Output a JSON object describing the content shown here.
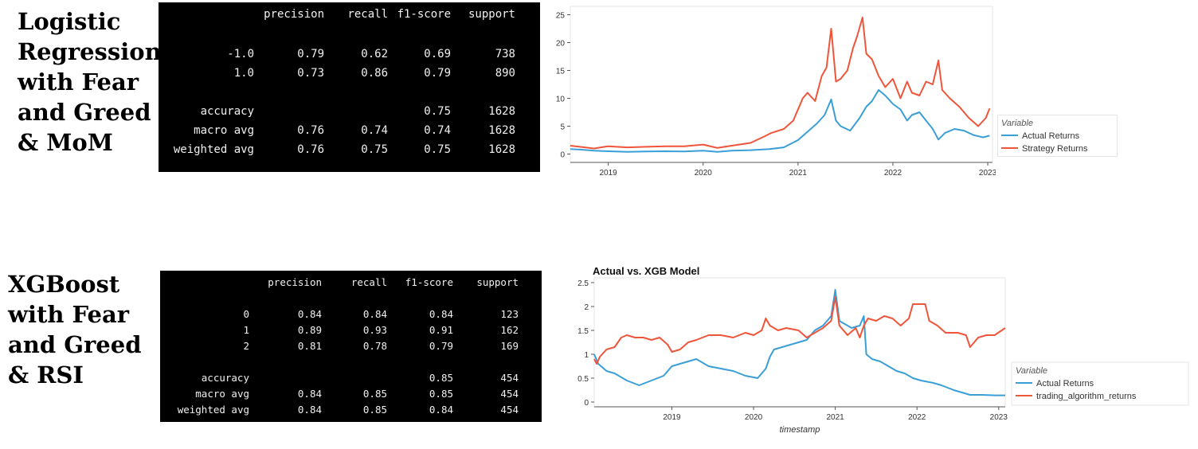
{
  "sections": [
    {
      "title": "Logistic\nRegression\nwith Fear\nand Greed\n& MoM",
      "report": {
        "headers": [
          "precision",
          "recall",
          "f1-score",
          "support"
        ],
        "rows": [
          {
            "label": "-1.0",
            "values": [
              "0.79",
              "0.62",
              "0.69",
              "738"
            ]
          },
          {
            "label": "1.0",
            "values": [
              "0.73",
              "0.86",
              "0.79",
              "890"
            ]
          },
          {
            "label": "accuracy",
            "values": [
              "",
              "",
              "0.75",
              "1628"
            ]
          },
          {
            "label": "macro avg",
            "values": [
              "0.76",
              "0.74",
              "0.74",
              "1628"
            ]
          },
          {
            "label": "weighted avg",
            "values": [
              "0.76",
              "0.75",
              "0.75",
              "1628"
            ]
          }
        ]
      }
    },
    {
      "title": "XGBoost\nwith Fear\nand Greed\n& RSI",
      "report": {
        "headers": [
          "precision",
          "recall",
          "f1-score",
          "support"
        ],
        "rows": [
          {
            "label": "0",
            "values": [
              "0.84",
              "0.84",
              "0.84",
              "123"
            ]
          },
          {
            "label": "1",
            "values": [
              "0.89",
              "0.93",
              "0.91",
              "162"
            ]
          },
          {
            "label": "2",
            "values": [
              "0.81",
              "0.78",
              "0.79",
              "169"
            ]
          },
          {
            "label": "accuracy",
            "values": [
              "",
              "",
              "0.85",
              "454"
            ]
          },
          {
            "label": "macro avg",
            "values": [
              "0.84",
              "0.85",
              "0.85",
              "454"
            ]
          },
          {
            "label": "weighted avg",
            "values": [
              "0.84",
              "0.85",
              "0.84",
              "454"
            ]
          }
        ]
      }
    }
  ],
  "chart_data": [
    {
      "type": "line",
      "title": "",
      "xlabel": "",
      "ylabel": "",
      "x_ticks": [
        "2019",
        "2020",
        "2021",
        "2022",
        "2023"
      ],
      "x_range": [
        2018.6,
        2023.05
      ],
      "y_ticks": [
        0,
        5,
        10,
        15,
        20,
        25
      ],
      "ylim": [
        -1.5,
        26.5
      ],
      "legend": {
        "title": "Variable",
        "position": "right"
      },
      "series": [
        {
          "name": "Actual Returns",
          "color": "#3a9fd6",
          "points": [
            [
              2018.6,
              0.9
            ],
            [
              2018.7,
              0.8
            ],
            [
              2018.85,
              0.6
            ],
            [
              2019.0,
              0.5
            ],
            [
              2019.2,
              0.4
            ],
            [
              2019.4,
              0.45
            ],
            [
              2019.6,
              0.5
            ],
            [
              2019.8,
              0.45
            ],
            [
              2020.0,
              0.6
            ],
            [
              2020.15,
              0.4
            ],
            [
              2020.3,
              0.6
            ],
            [
              2020.5,
              0.7
            ],
            [
              2020.7,
              0.9
            ],
            [
              2020.85,
              1.2
            ],
            [
              2021.0,
              2.5
            ],
            [
              2021.1,
              4.0
            ],
            [
              2021.2,
              5.5
            ],
            [
              2021.28,
              7.0
            ],
            [
              2021.35,
              9.8
            ],
            [
              2021.4,
              6.0
            ],
            [
              2021.45,
              5.0
            ],
            [
              2021.55,
              4.2
            ],
            [
              2021.65,
              6.5
            ],
            [
              2021.72,
              8.5
            ],
            [
              2021.78,
              9.5
            ],
            [
              2021.85,
              11.5
            ],
            [
              2021.92,
              10.5
            ],
            [
              2022.0,
              9.0
            ],
            [
              2022.08,
              8.0
            ],
            [
              2022.15,
              6.0
            ],
            [
              2022.2,
              7.0
            ],
            [
              2022.28,
              7.5
            ],
            [
              2022.35,
              6.0
            ],
            [
              2022.42,
              4.5
            ],
            [
              2022.48,
              2.6
            ],
            [
              2022.55,
              3.8
            ],
            [
              2022.65,
              4.5
            ],
            [
              2022.75,
              4.2
            ],
            [
              2022.85,
              3.4
            ],
            [
              2022.95,
              3.0
            ],
            [
              2023.02,
              3.3
            ]
          ]
        },
        {
          "name": "Strategy Returns",
          "color": "#ef553b",
          "points": [
            [
              2018.6,
              1.5
            ],
            [
              2018.7,
              1.3
            ],
            [
              2018.85,
              1.0
            ],
            [
              2019.0,
              1.4
            ],
            [
              2019.2,
              1.2
            ],
            [
              2019.4,
              1.3
            ],
            [
              2019.6,
              1.4
            ],
            [
              2019.8,
              1.4
            ],
            [
              2020.0,
              1.7
            ],
            [
              2020.15,
              1.1
            ],
            [
              2020.3,
              1.5
            ],
            [
              2020.5,
              2.0
            ],
            [
              2020.65,
              3.2
            ],
            [
              2020.72,
              3.8
            ],
            [
              2020.85,
              4.5
            ],
            [
              2020.95,
              6.0
            ],
            [
              2021.05,
              10.0
            ],
            [
              2021.1,
              11.0
            ],
            [
              2021.18,
              9.5
            ],
            [
              2021.25,
              14.0
            ],
            [
              2021.3,
              15.5
            ],
            [
              2021.35,
              22.5
            ],
            [
              2021.4,
              13.0
            ],
            [
              2021.45,
              13.5
            ],
            [
              2021.52,
              15.0
            ],
            [
              2021.58,
              19.0
            ],
            [
              2021.62,
              21.0
            ],
            [
              2021.68,
              24.5
            ],
            [
              2021.72,
              18.0
            ],
            [
              2021.78,
              17.0
            ],
            [
              2021.85,
              14.0
            ],
            [
              2021.92,
              12.0
            ],
            [
              2022.0,
              13.5
            ],
            [
              2022.08,
              10.0
            ],
            [
              2022.15,
              13.0
            ],
            [
              2022.2,
              11.0
            ],
            [
              2022.28,
              10.5
            ],
            [
              2022.35,
              13.0
            ],
            [
              2022.42,
              12.5
            ],
            [
              2022.48,
              16.8
            ],
            [
              2022.52,
              11.5
            ],
            [
              2022.6,
              10.0
            ],
            [
              2022.7,
              8.5
            ],
            [
              2022.8,
              6.5
            ],
            [
              2022.9,
              5.0
            ],
            [
              2022.98,
              6.5
            ],
            [
              2023.02,
              8.2
            ]
          ]
        }
      ]
    },
    {
      "type": "line",
      "title": "Actual vs. XGB Model",
      "xlabel": "timestamp",
      "ylabel": "",
      "x_ticks": [
        "2019",
        "2020",
        "2021",
        "2022",
        "2023"
      ],
      "x_range": [
        2018.05,
        2023.08
      ],
      "y_ticks": [
        "0",
        "0.5",
        "1",
        "1.5",
        "2",
        "2.5"
      ],
      "ylim": [
        -0.1,
        2.6
      ],
      "legend": {
        "title": "Variable",
        "position": "right"
      },
      "series": [
        {
          "name": "Actual Returns",
          "color": "#3a9fd6",
          "points": [
            [
              2018.05,
              1.0
            ],
            [
              2018.1,
              0.8
            ],
            [
              2018.2,
              0.65
            ],
            [
              2018.3,
              0.6
            ],
            [
              2018.45,
              0.45
            ],
            [
              2018.6,
              0.35
            ],
            [
              2018.75,
              0.45
            ],
            [
              2018.9,
              0.55
            ],
            [
              2019.0,
              0.75
            ],
            [
              2019.1,
              0.8
            ],
            [
              2019.2,
              0.85
            ],
            [
              2019.3,
              0.9
            ],
            [
              2019.45,
              0.75
            ],
            [
              2019.6,
              0.7
            ],
            [
              2019.75,
              0.65
            ],
            [
              2019.9,
              0.55
            ],
            [
              2020.05,
              0.5
            ],
            [
              2020.15,
              0.7
            ],
            [
              2020.2,
              0.95
            ],
            [
              2020.25,
              1.1
            ],
            [
              2020.35,
              1.15
            ],
            [
              2020.45,
              1.2
            ],
            [
              2020.55,
              1.25
            ],
            [
              2020.65,
              1.3
            ],
            [
              2020.75,
              1.5
            ],
            [
              2020.85,
              1.6
            ],
            [
              2020.95,
              1.8
            ],
            [
              2021.0,
              2.35
            ],
            [
              2021.05,
              1.7
            ],
            [
              2021.1,
              1.65
            ],
            [
              2021.2,
              1.55
            ],
            [
              2021.3,
              1.6
            ],
            [
              2021.35,
              1.8
            ],
            [
              2021.38,
              1.0
            ],
            [
              2021.45,
              0.9
            ],
            [
              2021.55,
              0.85
            ],
            [
              2021.65,
              0.75
            ],
            [
              2021.75,
              0.65
            ],
            [
              2021.85,
              0.6
            ],
            [
              2021.95,
              0.5
            ],
            [
              2022.05,
              0.45
            ],
            [
              2022.2,
              0.4
            ],
            [
              2022.3,
              0.35
            ],
            [
              2022.45,
              0.25
            ],
            [
              2022.55,
              0.2
            ],
            [
              2022.65,
              0.15
            ],
            [
              2022.8,
              0.15
            ],
            [
              2022.95,
              0.14
            ],
            [
              2023.08,
              0.14
            ]
          ]
        },
        {
          "name": "trading_algorithm_returns",
          "color": "#ef553b",
          "points": [
            [
              2018.05,
              0.9
            ],
            [
              2018.08,
              0.8
            ],
            [
              2018.12,
              0.95
            ],
            [
              2018.2,
              1.1
            ],
            [
              2018.3,
              1.15
            ],
            [
              2018.38,
              1.35
            ],
            [
              2018.45,
              1.4
            ],
            [
              2018.55,
              1.35
            ],
            [
              2018.65,
              1.35
            ],
            [
              2018.75,
              1.3
            ],
            [
              2018.85,
              1.35
            ],
            [
              2018.95,
              1.2
            ],
            [
              2019.0,
              1.05
            ],
            [
              2019.1,
              1.1
            ],
            [
              2019.2,
              1.25
            ],
            [
              2019.3,
              1.3
            ],
            [
              2019.45,
              1.4
            ],
            [
              2019.6,
              1.4
            ],
            [
              2019.75,
              1.35
            ],
            [
              2019.9,
              1.45
            ],
            [
              2020.0,
              1.4
            ],
            [
              2020.1,
              1.5
            ],
            [
              2020.15,
              1.75
            ],
            [
              2020.2,
              1.6
            ],
            [
              2020.3,
              1.5
            ],
            [
              2020.4,
              1.55
            ],
            [
              2020.55,
              1.5
            ],
            [
              2020.65,
              1.35
            ],
            [
              2020.75,
              1.45
            ],
            [
              2020.85,
              1.55
            ],
            [
              2020.95,
              1.7
            ],
            [
              2021.0,
              2.2
            ],
            [
              2021.05,
              1.6
            ],
            [
              2021.15,
              1.4
            ],
            [
              2021.25,
              1.55
            ],
            [
              2021.3,
              1.35
            ],
            [
              2021.35,
              1.6
            ],
            [
              2021.4,
              1.75
            ],
            [
              2021.5,
              1.7
            ],
            [
              2021.6,
              1.8
            ],
            [
              2021.7,
              1.75
            ],
            [
              2021.8,
              1.6
            ],
            [
              2021.9,
              1.75
            ],
            [
              2021.95,
              2.05
            ],
            [
              2022.1,
              2.05
            ],
            [
              2022.15,
              1.7
            ],
            [
              2022.25,
              1.6
            ],
            [
              2022.35,
              1.45
            ],
            [
              2022.5,
              1.45
            ],
            [
              2022.6,
              1.4
            ],
            [
              2022.65,
              1.15
            ],
            [
              2022.75,
              1.35
            ],
            [
              2022.85,
              1.4
            ],
            [
              2022.95,
              1.4
            ],
            [
              2023.08,
              1.55
            ]
          ]
        }
      ]
    }
  ]
}
